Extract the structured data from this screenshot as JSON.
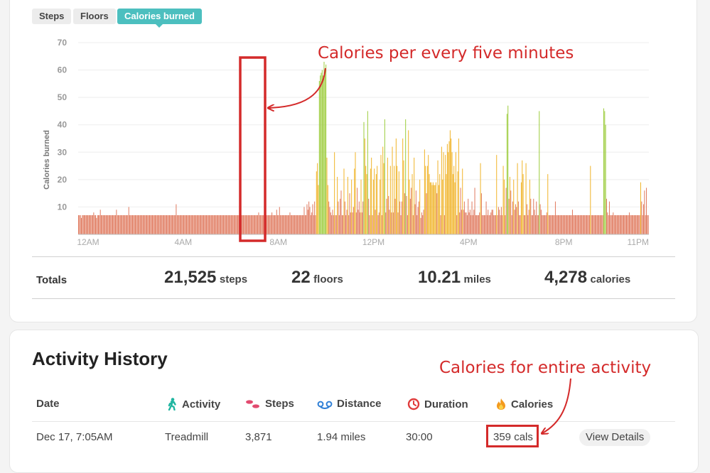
{
  "tabs": [
    {
      "label": "Steps"
    },
    {
      "label": "Floors"
    },
    {
      "label": "Calories burned"
    }
  ],
  "chart_data": {
    "type": "bar",
    "title": "",
    "xlabel": "",
    "ylabel": "Calories burned",
    "ylim": [
      0,
      70
    ],
    "yticks": [
      10,
      20,
      30,
      40,
      50,
      60,
      70
    ],
    "x_tick_labels": [
      "12AM",
      "4AM",
      "8AM",
      "12PM",
      "4PM",
      "8PM",
      "11PM"
    ],
    "interval": "5 minutes",
    "series": [
      {
        "name": "Calories burned",
        "values": [
          7,
          7,
          7,
          6,
          7,
          7,
          7,
          7,
          7,
          7,
          7,
          7,
          7,
          7,
          7,
          7,
          8,
          7,
          7,
          6,
          7,
          7,
          7,
          9,
          7,
          7,
          7,
          7,
          7,
          7,
          7,
          7,
          7,
          7,
          7,
          7,
          7,
          7,
          7,
          7,
          9,
          7,
          7,
          7,
          7,
          7,
          7,
          7,
          7,
          7,
          7,
          7,
          7,
          10,
          7,
          7,
          7,
          7,
          7,
          7,
          7,
          7,
          7,
          7,
          7,
          7,
          7,
          7,
          7,
          7,
          7,
          7,
          7,
          7,
          7,
          7,
          7,
          7,
          7,
          7,
          7,
          7,
          7,
          7,
          7,
          7,
          7,
          7,
          7,
          7,
          7,
          7,
          7,
          7,
          7,
          7,
          7,
          7,
          7,
          7,
          7,
          7,
          7,
          11,
          7,
          7,
          7,
          7,
          7,
          7,
          7,
          7,
          7,
          7,
          7,
          7,
          7,
          7,
          7,
          7,
          7,
          7,
          7,
          7,
          7,
          7,
          7,
          7,
          7,
          7,
          7,
          7,
          7,
          7,
          7,
          7,
          7,
          7,
          7,
          7,
          7,
          7,
          7,
          7,
          7,
          7,
          7,
          7,
          7,
          7,
          7,
          7,
          7,
          7,
          7,
          7,
          7,
          7,
          7,
          7,
          7,
          7,
          7,
          7,
          7,
          7,
          7,
          7,
          7,
          7,
          7,
          7,
          7,
          7,
          7,
          7,
          7,
          7,
          7,
          7,
          7,
          7,
          7,
          7,
          7,
          7,
          7,
          7,
          7,
          7,
          8,
          7,
          7,
          7,
          7,
          7,
          7,
          7,
          7,
          7,
          7,
          7,
          7,
          7,
          8,
          7,
          7,
          7,
          7,
          9,
          7,
          7,
          10,
          7,
          7,
          7,
          7,
          7,
          7,
          7,
          7,
          7,
          7,
          8,
          7,
          7,
          7,
          7,
          7,
          7,
          7,
          7,
          7,
          7,
          7,
          7,
          7,
          7,
          10,
          7,
          7,
          11,
          9,
          12,
          10,
          7,
          8,
          11,
          7,
          12,
          7,
          23,
          26,
          18,
          56,
          58,
          59,
          60,
          58,
          63,
          60,
          62,
          28,
          18,
          12,
          10,
          8,
          7,
          9,
          7,
          30,
          7,
          7,
          21,
          12,
          7,
          13,
          16,
          7,
          7,
          24,
          12,
          7,
          9,
          21,
          7,
          15,
          8,
          20,
          8,
          10,
          24,
          30,
          8,
          17,
          9,
          12,
          8,
          20,
          8,
          12,
          41,
          35,
          25,
          22,
          45,
          13,
          7,
          24,
          28,
          7,
          20,
          24,
          9,
          22,
          25,
          7,
          8,
          20,
          29,
          7,
          32,
          26,
          42,
          8,
          13,
          28,
          14,
          9,
          25,
          8,
          32,
          8,
          25,
          13,
          35,
          25,
          8,
          23,
          12,
          7,
          12,
          35,
          27,
          15,
          42,
          14,
          7,
          38,
          20,
          13,
          17,
          22,
          7,
          28,
          11,
          16,
          7,
          10,
          12,
          20,
          6,
          8,
          7,
          9,
          31,
          25,
          15,
          25,
          29,
          22,
          19,
          19,
          18,
          19,
          18,
          18,
          19,
          15,
          27,
          18,
          22,
          7,
          32,
          20,
          30,
          7,
          29,
          22,
          33,
          30,
          34,
          38,
          35,
          30,
          22,
          25,
          19,
          30,
          7,
          23,
          35,
          8,
          17,
          9,
          24,
          9,
          12,
          8,
          8,
          7,
          13,
          8,
          9,
          7,
          12,
          7,
          9,
          17,
          7,
          7,
          7,
          7,
          8,
          26,
          15,
          7,
          7,
          7,
          7,
          12,
          7,
          9,
          7,
          7,
          8,
          9,
          9,
          7,
          7,
          7,
          29,
          7,
          10,
          9,
          7,
          10,
          7,
          25,
          20,
          7,
          17,
          44,
          47,
          13,
          21,
          16,
          7,
          12,
          20,
          9,
          11,
          10,
          26,
          12,
          7,
          7,
          19,
          27,
          22,
          7,
          7,
          26,
          11,
          7,
          9,
          20,
          13,
          7,
          7,
          13,
          9,
          7,
          12,
          7,
          7,
          45,
          11,
          9,
          7,
          7,
          7,
          7,
          7,
          8,
          22,
          7,
          7,
          7,
          7,
          7,
          7,
          7,
          12,
          7,
          7,
          7,
          7,
          7,
          7,
          7,
          7,
          7,
          7,
          7,
          7,
          7,
          7,
          7,
          7,
          7,
          9,
          7,
          7,
          7,
          7,
          7,
          7,
          7,
          7,
          7,
          7,
          7,
          7,
          7,
          7,
          7,
          7,
          7,
          7,
          25,
          7,
          7,
          7,
          7,
          7,
          7,
          7,
          7,
          7,
          7,
          7,
          7,
          7,
          46,
          45,
          40,
          13,
          8,
          7,
          12,
          7,
          7,
          7,
          8,
          7,
          7,
          7,
          7,
          7,
          7,
          7,
          7,
          7,
          7,
          7,
          7,
          7,
          7,
          7,
          7,
          8,
          7,
          7,
          7,
          7,
          7,
          7,
          7,
          7,
          7,
          7,
          7,
          19,
          12,
          7,
          11,
          16,
          7,
          17,
          7,
          7
        ]
      }
    ]
  },
  "annotations": {
    "chart_callout": "Calories per every five minutes",
    "calories_callout": "Calories for entire activity"
  },
  "totals": {
    "label": "Totals",
    "steps_value": "21,525",
    "steps_unit": "steps",
    "floors_value": "22",
    "floors_unit": "floors",
    "miles_value": "10.21",
    "miles_unit": "miles",
    "calories_value": "4,278",
    "calories_unit": "calories"
  },
  "activity_history": {
    "title": "Activity History",
    "columns": {
      "date": "Date",
      "activity": "Activity",
      "steps": "Steps",
      "distance": "Distance",
      "duration": "Duration",
      "calories": "Calories"
    },
    "rows": [
      {
        "date": "Dec 17, 7:05AM",
        "activity": "Treadmill",
        "steps": "3,871",
        "distance": "1.94 miles",
        "duration": "30:00",
        "calories": "359 cals",
        "action": "View Details"
      }
    ]
  },
  "colors": {
    "accent": "#4cbfbf",
    "annotation": "#d42a2a",
    "bar_low": "#e07a5f",
    "bar_mid": "#f0b429",
    "bar_high": "#9ccc3c"
  }
}
